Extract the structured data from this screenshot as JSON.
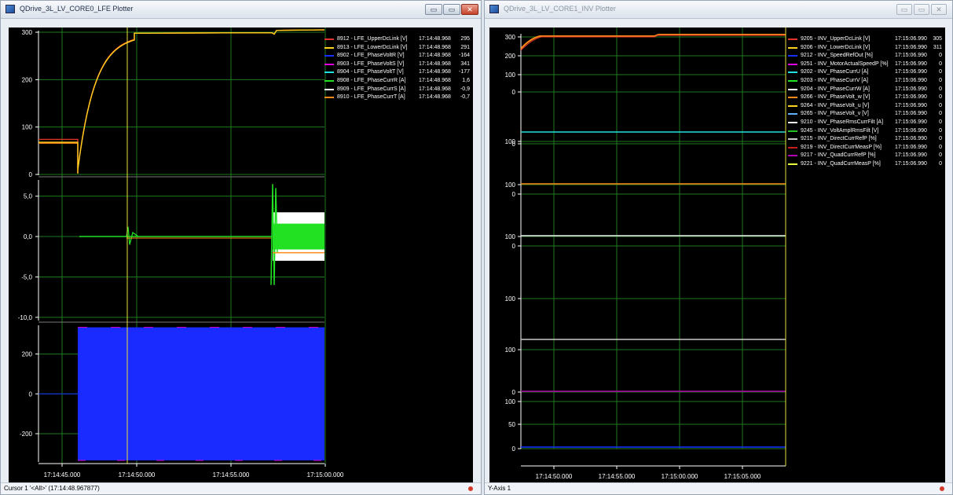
{
  "left_window": {
    "title": "QDrive_3L_LV_CORE0_LFE Plotter",
    "controls": {
      "minimize": "▭",
      "maximize": "▭",
      "close": "✕"
    },
    "status_text": "Cursor 1 '<All>' (17:14:48.967877)",
    "legend": [
      {
        "name": "8912 - LFE_UpperDcLink [V]",
        "time": "17:14:48.968",
        "value": "295",
        "color": "#e3342b"
      },
      {
        "name": "8913 - LFE_LowerDcLink [V]",
        "time": "17:14:48.968",
        "value": "291",
        "color": "#ffd21f"
      },
      {
        "name": "8902 - LFE_PhaseVoltR [V]",
        "time": "17:14:48.968",
        "value": "-164",
        "color": "#1430ff"
      },
      {
        "name": "8903 - LFE_PhaseVoltS [V]",
        "time": "17:14:48.968",
        "value": "341",
        "color": "#e000e0"
      },
      {
        "name": "8904 - LFE_PhaseVoltT [V]",
        "time": "17:14:48.968",
        "value": "-177",
        "color": "#20e0e0"
      },
      {
        "name": "8908 - LFE_PhaseCurrR [A]",
        "time": "17:14:48.968",
        "value": "1,6",
        "color": "#22e022"
      },
      {
        "name": "8909 - LFE_PhaseCurrS [A]",
        "time": "17:14:48.968",
        "value": "-0,9",
        "color": "#ffffff"
      },
      {
        "name": "8910 - LFE_PhaseCurrT [A]",
        "time": "17:14:48.968",
        "value": "-0,7",
        "color": "#ff8a1a"
      }
    ],
    "panels": [
      {
        "ticks": [
          {
            "v": 300,
            "label": "300"
          },
          {
            "v": 200,
            "label": "200"
          },
          {
            "v": 100,
            "label": "100"
          },
          {
            "v": 0,
            "label": "0"
          }
        ],
        "min": -5,
        "max": 310
      },
      {
        "ticks": [
          {
            "v": 5,
            "label": "5,0"
          },
          {
            "v": 0,
            "label": "0,0"
          },
          {
            "v": -5,
            "label": "-5,0"
          },
          {
            "v": -10,
            "label": "-10,0"
          }
        ],
        "min": -10.6,
        "max": 7.4
      },
      {
        "ticks": [
          {
            "v": 200,
            "label": "200"
          },
          {
            "v": 0,
            "label": "0"
          },
          {
            "v": -200,
            "label": "-200"
          }
        ],
        "min": -350,
        "max": 360
      }
    ],
    "x_ticks": [
      "17:14:45.000",
      "17:14:50.000",
      "17:14:55.000",
      "17:15:00.000"
    ]
  },
  "right_window": {
    "title": "QDrive_3L_LV_CORE1_INV Plotter",
    "controls": {
      "minimize": "▭",
      "maximize": "▭",
      "close": "✕"
    },
    "status_text": "Y-Axis 1",
    "legend": [
      {
        "name": "9205 - INV_UpperDcLink [V]",
        "time": "17:15:06.990",
        "value": "305",
        "color": "#e3342b"
      },
      {
        "name": "9206 - INV_LowerDcLink [V]",
        "time": "17:15:06.990",
        "value": "311",
        "color": "#ffd21f"
      },
      {
        "name": "9212 - INV_SpeedRefOut [%]",
        "time": "17:15:06.990",
        "value": "0",
        "color": "#1430ff"
      },
      {
        "name": "9251 - INV_MotorActualSpeedP [%]",
        "time": "17:15:06.990",
        "value": "0",
        "color": "#e000e0"
      },
      {
        "name": "9202 - INV_PhaseCurrU [A]",
        "time": "17:15:06.990",
        "value": "0",
        "color": "#20e0e0"
      },
      {
        "name": "9203 - INV_PhaseCurrV [A]",
        "time": "17:15:06.990",
        "value": "0",
        "color": "#22e022"
      },
      {
        "name": "9204 - INV_PhaseCurrW [A]",
        "time": "17:15:06.990",
        "value": "0",
        "color": "#ffffff"
      },
      {
        "name": "9266 - INV_PhaseVolt_w [V]",
        "time": "17:15:06.990",
        "value": "0",
        "color": "#ff8a1a"
      },
      {
        "name": "9264 - INV_PhaseVolt_u [V]",
        "time": "17:15:06.990",
        "value": "0",
        "color": "#ffd21f"
      },
      {
        "name": "9265 - INV_PhaseVolt_v [V]",
        "time": "17:15:06.990",
        "value": "0",
        "color": "#60b0ff"
      },
      {
        "name": "9210 - INV_PhaseRmsCurrFilt [A]",
        "time": "17:15:06.990",
        "value": "0",
        "color": "#f0f0f0"
      },
      {
        "name": "9245 - INV_VoltAmplRmsFilt [V]",
        "time": "17:15:06.990",
        "value": "0",
        "color": "#22c022"
      },
      {
        "name": "9215 - INV_DirectCurrRefP [%]",
        "time": "17:15:06.990",
        "value": "0",
        "color": "#c8c8c8"
      },
      {
        "name": "9219 - INV_DirectCurrMeasP [%]",
        "time": "17:15:06.990",
        "value": "0",
        "color": "#c81e1e"
      },
      {
        "name": "9217 - INV_QuadCurrRefP [%]",
        "time": "17:15:06.990",
        "value": "0",
        "color": "#b000b0"
      },
      {
        "name": "9221 - INV_QuadCurrMeasP [%]",
        "time": "17:15:06.990",
        "value": "0",
        "color": "#e8ff40"
      }
    ],
    "x_ticks": [
      "17:14:50.000",
      "17:14:55.000",
      "17:15:00.000",
      "17:15:05.000"
    ],
    "panels": [
      {
        "ticks": [
          {
            "label": "300"
          },
          {
            "label": "200"
          },
          {
            "label": "100"
          },
          {
            "label": "0"
          }
        ]
      },
      {
        "ticks": [
          {
            "label": "100"
          },
          {
            "label": "0"
          }
        ]
      },
      {
        "ticks": [
          {
            "label": "100"
          },
          {
            "label": "0"
          }
        ]
      },
      {
        "ticks": [
          {
            "label": "100"
          },
          {
            "label": "0"
          }
        ]
      },
      {
        "ticks": [
          {
            "label": "100"
          }
        ]
      },
      {
        "ticks": [
          {
            "label": "100"
          },
          {
            "label": "0"
          }
        ]
      },
      {
        "ticks": [
          {
            "label": "100"
          },
          {
            "label": "50"
          },
          {
            "label": "0"
          }
        ]
      }
    ]
  }
}
